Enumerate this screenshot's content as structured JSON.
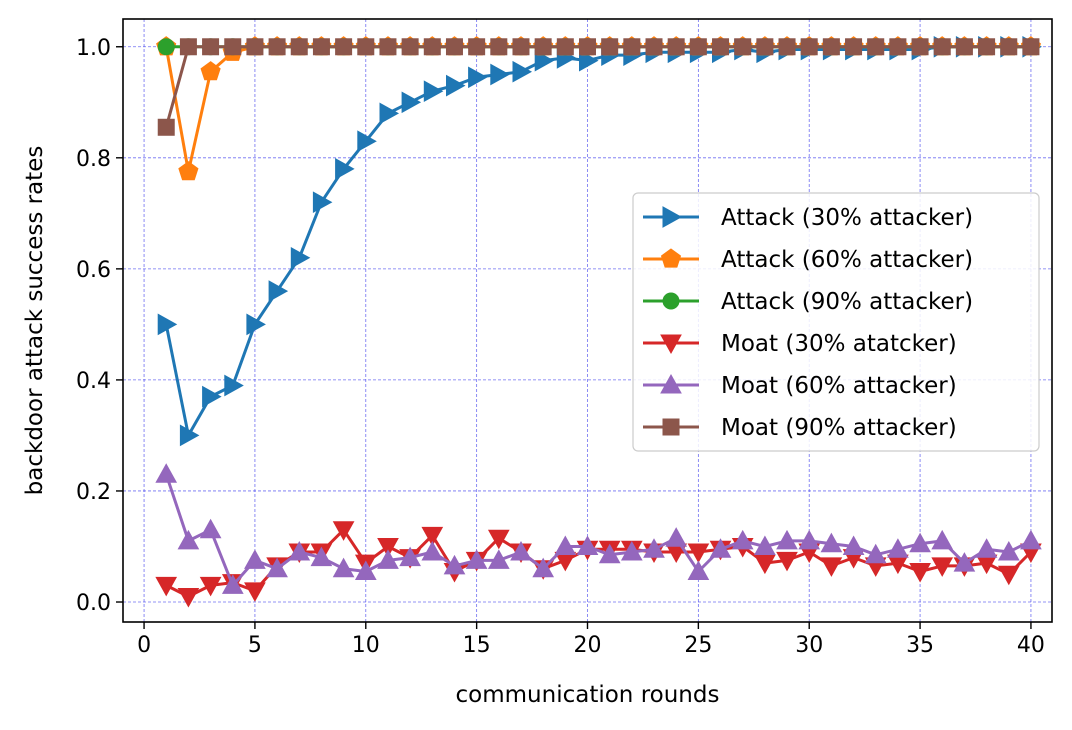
{
  "chart_data": {
    "type": "line",
    "title": "",
    "xlabel": "communication rounds",
    "ylabel": "backdoor attack success rates",
    "xlim": [
      -0.95,
      40.95
    ],
    "ylim": [
      -0.036,
      1.05
    ],
    "xticks": [
      0,
      5,
      10,
      15,
      20,
      25,
      30,
      35,
      40
    ],
    "xtick_labels": [
      "0",
      "5",
      "10",
      "15",
      "20",
      "25",
      "30",
      "35",
      "40"
    ],
    "yticks": [
      0.0,
      0.2,
      0.4,
      0.6,
      0.8,
      1.0
    ],
    "ytick_labels": [
      "0.0",
      "0.2",
      "0.4",
      "0.6",
      "0.8",
      "1.0"
    ],
    "grid": true,
    "legend_position": "center-right",
    "x": [
      1,
      2,
      3,
      4,
      5,
      6,
      7,
      8,
      9,
      10,
      11,
      12,
      13,
      14,
      15,
      16,
      17,
      18,
      19,
      20,
      21,
      22,
      23,
      24,
      25,
      26,
      27,
      28,
      29,
      30,
      31,
      32,
      33,
      34,
      35,
      36,
      37,
      38,
      39,
      40
    ],
    "series": [
      {
        "name": "Attack (30% attacker)",
        "color": "#1f77b4",
        "marker": "triangle-right",
        "values": [
          0.5,
          0.3,
          0.37,
          0.39,
          0.5,
          0.56,
          0.62,
          0.72,
          0.78,
          0.83,
          0.88,
          0.9,
          0.92,
          0.93,
          0.945,
          0.95,
          0.955,
          0.975,
          0.98,
          0.975,
          0.985,
          0.985,
          0.99,
          0.99,
          0.99,
          0.99,
          0.995,
          0.99,
          0.995,
          0.995,
          0.995,
          0.995,
          0.995,
          0.995,
          0.995,
          1.0,
          1.0,
          1.0,
          1.0,
          1.0
        ]
      },
      {
        "name": "Attack (60% attacker)",
        "color": "#ff7f0e",
        "marker": "pentagon",
        "values": [
          1.0,
          0.775,
          0.955,
          0.99,
          1.0,
          1.0,
          1.0,
          1.0,
          1.0,
          1.0,
          1.0,
          1.0,
          1.0,
          1.0,
          1.0,
          1.0,
          1.0,
          1.0,
          1.0,
          1.0,
          1.0,
          1.0,
          1.0,
          1.0,
          1.0,
          1.0,
          1.0,
          1.0,
          1.0,
          1.0,
          1.0,
          1.0,
          1.0,
          1.0,
          1.0,
          1.0,
          1.0,
          1.0,
          1.0,
          1.0
        ]
      },
      {
        "name": "Attack (90% attacker)",
        "color": "#2ca02c",
        "marker": "circle",
        "values": [
          1.0,
          1.0,
          1.0,
          1.0,
          1.0,
          1.0,
          1.0,
          1.0,
          1.0,
          1.0,
          1.0,
          1.0,
          1.0,
          1.0,
          1.0,
          1.0,
          1.0,
          1.0,
          1.0,
          1.0,
          1.0,
          1.0,
          1.0,
          1.0,
          1.0,
          1.0,
          1.0,
          1.0,
          1.0,
          1.0,
          1.0,
          1.0,
          1.0,
          1.0,
          1.0,
          1.0,
          1.0,
          1.0,
          1.0,
          1.0
        ]
      },
      {
        "name": "Moat (30% atatcker)",
        "color": "#d62728",
        "marker": "triangle-down",
        "values": [
          0.03,
          0.01,
          0.03,
          0.035,
          0.02,
          0.065,
          0.09,
          0.09,
          0.13,
          0.07,
          0.1,
          0.08,
          0.12,
          0.055,
          0.075,
          0.115,
          0.09,
          0.06,
          0.075,
          0.095,
          0.095,
          0.095,
          0.09,
          0.09,
          0.09,
          0.095,
          0.1,
          0.07,
          0.075,
          0.09,
          0.065,
          0.08,
          0.065,
          0.07,
          0.055,
          0.065,
          0.065,
          0.07,
          0.05,
          0.09
        ]
      },
      {
        "name": "Moat (60% attacker)",
        "color": "#9467bd",
        "marker": "triangle-up",
        "values": [
          0.23,
          0.11,
          0.13,
          0.03,
          0.075,
          0.06,
          0.09,
          0.08,
          0.06,
          0.055,
          0.075,
          0.08,
          0.09,
          0.065,
          0.075,
          0.075,
          0.09,
          0.06,
          0.1,
          0.1,
          0.085,
          0.09,
          0.095,
          0.115,
          0.055,
          0.095,
          0.11,
          0.1,
          0.11,
          0.11,
          0.105,
          0.1,
          0.085,
          0.095,
          0.105,
          0.11,
          0.07,
          0.095,
          0.09,
          0.11
        ]
      },
      {
        "name": "Moat (90% attacker)",
        "color": "#8c564b",
        "marker": "square",
        "values": [
          0.855,
          1.0,
          1.0,
          1.0,
          1.0,
          1.0,
          1.0,
          1.0,
          1.0,
          1.0,
          1.0,
          1.0,
          1.0,
          1.0,
          1.0,
          1.0,
          1.0,
          1.0,
          1.0,
          1.0,
          1.0,
          1.0,
          1.0,
          1.0,
          1.0,
          1.0,
          1.0,
          1.0,
          1.0,
          1.0,
          1.0,
          1.0,
          1.0,
          1.0,
          1.0,
          1.0,
          1.0,
          1.0,
          1.0,
          1.0
        ]
      }
    ]
  }
}
